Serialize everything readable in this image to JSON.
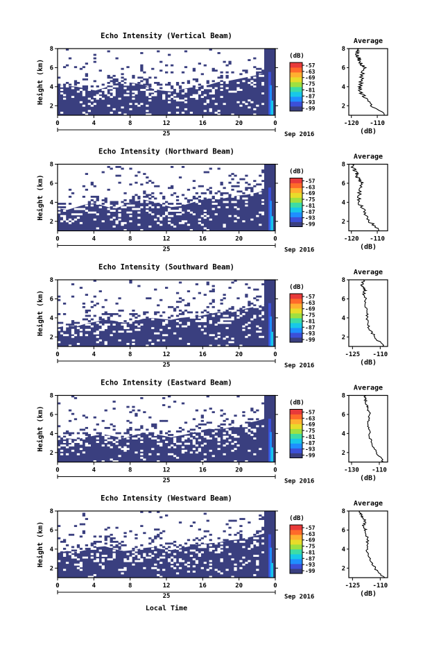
{
  "figure": {
    "bottom_label": "Local Time",
    "colorbar_unit": "(dB)",
    "colorbar_ticks": [
      "-57",
      "-63",
      "-69",
      "-75",
      "-81",
      "-87",
      "-93",
      "-99"
    ],
    "colormap": [
      "#3a3f7f",
      "#3c50d8",
      "#1f8fff",
      "#18c8e8",
      "#3ddca5",
      "#9fe040",
      "#e8dc2a",
      "#ffb030",
      "#ff6a2a",
      "#e83a3a"
    ],
    "bg_color": "#3a3f7f",
    "average_title": "Average",
    "average_unit": "(dB)"
  },
  "chart_data": [
    {
      "type": "heatmap",
      "title": "Echo Intensity (Vertical Beam)",
      "ylabel": "Height (km)",
      "x_ticks": [
        "0",
        "4",
        "8",
        "12",
        "16",
        "20",
        "0"
      ],
      "x_range": [
        0,
        24
      ],
      "date_day": "25",
      "date_label": "Sep 2016",
      "y_ticks": [
        "2",
        "4",
        "6",
        "8"
      ],
      "y_range": [
        1,
        8
      ],
      "boundary_km": [
        4.2,
        4.1,
        4.0,
        3.8,
        3.6,
        3.9,
        4.3,
        4.5,
        4.4,
        4.2,
        3.8,
        3.6,
        3.5,
        3.7,
        3.9,
        4.0,
        4.2,
        4.5,
        4.6,
        4.8,
        5.0,
        5.2,
        5.5,
        6.0
      ],
      "average": {
        "x_ticks": [
          "-120",
          "-110"
        ],
        "x_range": [
          -121,
          -106
        ],
        "height_km": [
          1.0,
          2.0,
          3.0,
          3.5,
          4.0,
          5.0,
          6.0,
          6.5,
          7.0,
          7.5,
          8.0
        ],
        "db": [
          -107,
          -112,
          -115,
          -117,
          -116.5,
          -116,
          -115,
          -116.5,
          -117,
          -118,
          -117
        ]
      }
    },
    {
      "type": "heatmap",
      "title": "Echo Intensity (Northward Beam)",
      "ylabel": "Height (km)",
      "x_ticks": [
        "0",
        "4",
        "8",
        "12",
        "16",
        "20",
        "0"
      ],
      "x_range": [
        0,
        24
      ],
      "date_day": "25",
      "date_label": "Sep 2016",
      "y_ticks": [
        "2",
        "4",
        "6",
        "8"
      ],
      "y_range": [
        1,
        8
      ],
      "boundary_km": [
        3.4,
        3.2,
        3.5,
        3.8,
        3.9,
        3.6,
        3.3,
        3.7,
        4.0,
        4.3,
        4.1,
        3.8,
        3.5,
        3.6,
        3.9,
        4.2,
        4.4,
        4.3,
        4.5,
        4.7,
        4.8,
        5.0,
        5.3,
        5.8
      ],
      "average": {
        "x_ticks": [
          "-120",
          "-110"
        ],
        "x_range": [
          -121,
          -106
        ],
        "height_km": [
          1.0,
          2.0,
          3.0,
          4.0,
          5.0,
          6.0,
          6.5,
          7.0,
          7.5,
          8.0
        ],
        "db": [
          -109,
          -113,
          -115,
          -117,
          -117,
          -116,
          -117.5,
          -118,
          -119,
          -120
        ]
      }
    },
    {
      "type": "heatmap",
      "title": "Echo Intensity (Southward Beam)",
      "ylabel": "Height (km)",
      "x_ticks": [
        "0",
        "4",
        "8",
        "12",
        "16",
        "20",
        "0"
      ],
      "x_range": [
        0,
        24
      ],
      "date_day": "25",
      "date_label": "Sep 2016",
      "y_ticks": [
        "2",
        "4",
        "6",
        "8"
      ],
      "y_range": [
        1,
        8
      ],
      "boundary_km": [
        3.0,
        3.2,
        3.1,
        3.4,
        3.6,
        3.8,
        3.7,
        3.5,
        3.6,
        3.9,
        4.0,
        3.9,
        3.8,
        4.0,
        4.1,
        4.2,
        4.4,
        4.6,
        4.5,
        4.7,
        5.0,
        5.2,
        5.5,
        5.8
      ],
      "average": {
        "x_ticks": [
          "-125",
          "-110"
        ],
        "x_range": [
          -127,
          -106
        ],
        "height_km": [
          1.0,
          2.0,
          3.0,
          4.0,
          5.0,
          6.0,
          6.5,
          7.0,
          7.5,
          8.0
        ],
        "db": [
          -108,
          -113,
          -116,
          -117,
          -117.5,
          -118,
          -119,
          -118,
          -120,
          -119
        ]
      }
    },
    {
      "type": "heatmap",
      "title": "Echo Intensity (Eastward Beam)",
      "ylabel": "Height (km)",
      "x_ticks": [
        "0",
        "4",
        "8",
        "12",
        "16",
        "20",
        "0"
      ],
      "x_range": [
        0,
        24
      ],
      "date_day": "25",
      "date_label": "Sep 2016",
      "y_ticks": [
        "2",
        "4",
        "6",
        "8"
      ],
      "y_range": [
        1,
        8
      ],
      "boundary_km": [
        3.3,
        3.5,
        3.4,
        3.6,
        3.8,
        3.9,
        3.7,
        3.5,
        3.8,
        4.1,
        4.0,
        3.8,
        3.6,
        3.8,
        4.0,
        4.3,
        4.5,
        4.4,
        4.6,
        4.8,
        5.1,
        5.3,
        5.6,
        6.0
      ],
      "average": {
        "x_ticks": [
          "-130",
          "-110"
        ],
        "x_range": [
          -132,
          -104
        ],
        "height_km": [
          1.0,
          2.0,
          3.0,
          4.0,
          5.0,
          6.0,
          6.5,
          7.0,
          7.5,
          8.0
        ],
        "db": [
          -107,
          -112,
          -116,
          -117,
          -118,
          -117,
          -118,
          -119,
          -120,
          -121
        ]
      }
    },
    {
      "type": "heatmap",
      "title": "Echo Intensity (Westward Beam)",
      "ylabel": "Height (km)",
      "x_ticks": [
        "0",
        "4",
        "8",
        "12",
        "16",
        "20",
        "0"
      ],
      "x_range": [
        0,
        24
      ],
      "date_day": "25",
      "date_label": "Sep 2016",
      "y_ticks": [
        "2",
        "4",
        "6",
        "8"
      ],
      "y_range": [
        1,
        8
      ],
      "boundary_km": [
        3.6,
        3.8,
        3.7,
        3.9,
        4.2,
        4.3,
        4.0,
        3.8,
        3.9,
        4.1,
        4.2,
        4.0,
        3.9,
        4.1,
        4.3,
        4.5,
        4.6,
        4.7,
        4.9,
        5.0,
        5.2,
        5.4,
        5.7,
        6.0
      ],
      "average": {
        "x_ticks": [
          "-125",
          "-110"
        ],
        "x_range": [
          -127,
          -106
        ],
        "height_km": [
          1.0,
          2.0,
          3.0,
          4.0,
          5.0,
          6.0,
          6.5,
          7.0,
          7.5,
          8.0
        ],
        "db": [
          -108,
          -113,
          -116,
          -117,
          -117,
          -118,
          -119,
          -118,
          -120,
          -121
        ]
      }
    }
  ]
}
